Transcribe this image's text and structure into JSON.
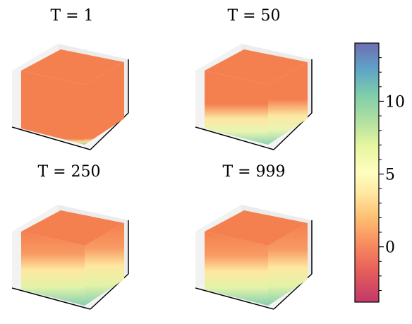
{
  "chart_data": {
    "type": "heatmap",
    "subtype": "3d-voxel-cube",
    "panels": [
      {
        "title": "T = 1",
        "layout": "top-left"
      },
      {
        "title": "T = 50",
        "layout": "top-right"
      },
      {
        "title": "T = 250",
        "layout": "bottom-left"
      },
      {
        "title": "T = 999",
        "layout": "bottom-right"
      }
    ],
    "colorbar": {
      "colormap": "Spectral",
      "range": [
        -3.8,
        14
      ],
      "ticks": [
        0,
        5,
        10
      ],
      "tick_labels": [
        "0",
        "5",
        "10"
      ],
      "minor_ticks": [
        -3,
        -2,
        -1,
        1,
        2,
        3,
        4,
        6,
        7,
        8,
        9,
        11,
        12,
        13
      ],
      "placement": "right"
    }
  }
}
